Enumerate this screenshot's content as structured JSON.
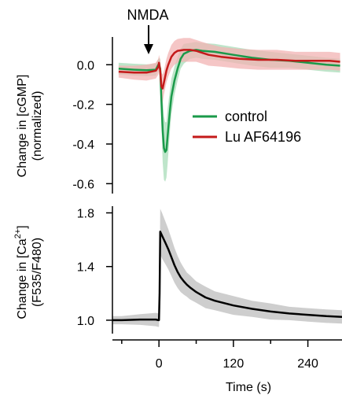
{
  "chart_data": [
    {
      "id": "top",
      "type": "line",
      "ylabel_lines": [
        "Change in [cGMP]",
        "(normalized)"
      ],
      "ylim": [
        -0.65,
        0.14
      ],
      "yticks": [
        0.0,
        -0.2,
        -0.4,
        -0.6
      ],
      "ytick_labels": [
        "0.0",
        "-0.2",
        "-0.4",
        "-0.6"
      ],
      "annotation": "NMDA",
      "annotation_x": 0,
      "legend": [
        "control",
        "Lu AF64196"
      ],
      "legend_position": "center-right",
      "series": [
        {
          "name": "control",
          "color": "#1a9a4a",
          "band_color": "#a8dcb8",
          "points": [
            [
              -65,
              -0.02
            ],
            [
              -40,
              -0.025
            ],
            [
              -20,
              -0.028
            ],
            [
              -5,
              -0.025
            ],
            [
              -1,
              0.0
            ],
            [
              0,
              0.0
            ],
            [
              2,
              -0.02
            ],
            [
              4,
              -0.18
            ],
            [
              6,
              -0.33
            ],
            [
              8,
              -0.42
            ],
            [
              10,
              -0.44
            ],
            [
              12,
              -0.43
            ],
            [
              14,
              -0.36
            ],
            [
              16,
              -0.29
            ],
            [
              18,
              -0.22
            ],
            [
              20,
              -0.16
            ],
            [
              25,
              -0.08
            ],
            [
              30,
              -0.02
            ],
            [
              35,
              0.03
            ],
            [
              40,
              0.055
            ],
            [
              50,
              0.07
            ],
            [
              60,
              0.075
            ],
            [
              70,
              0.07
            ],
            [
              90,
              0.065
            ],
            [
              120,
              0.05
            ],
            [
              150,
              0.035
            ],
            [
              180,
              0.025
            ],
            [
              210,
              0.02
            ],
            [
              240,
              0.01
            ],
            [
              270,
              0.0
            ],
            [
              292,
              -0.005
            ]
          ],
          "band": [
            0.03,
            0.03,
            0.03,
            0.03,
            0.03,
            0.035,
            0.05,
            0.12,
            0.16,
            0.16,
            0.15,
            0.14,
            0.14,
            0.12,
            0.1,
            0.09,
            0.07,
            0.06,
            0.05,
            0.05,
            0.04,
            0.04,
            0.04,
            0.04,
            0.04,
            0.04,
            0.04,
            0.035,
            0.035,
            0.035,
            0.035
          ]
        },
        {
          "name": "Lu AF64196",
          "color": "#c41a1a",
          "band_color": "#f2b3b3",
          "points": [
            [
              -65,
              -0.035
            ],
            [
              -40,
              -0.04
            ],
            [
              -20,
              -0.04
            ],
            [
              -5,
              -0.03
            ],
            [
              -1,
              -0.01
            ],
            [
              0,
              0.01
            ],
            [
              2,
              -0.03
            ],
            [
              4,
              -0.11
            ],
            [
              6,
              -0.12
            ],
            [
              8,
              -0.09
            ],
            [
              10,
              -0.06
            ],
            [
              12,
              -0.03
            ],
            [
              15,
              0.0
            ],
            [
              20,
              0.04
            ],
            [
              25,
              0.06
            ],
            [
              30,
              0.07
            ],
            [
              40,
              0.075
            ],
            [
              50,
              0.075
            ],
            [
              60,
              0.07
            ],
            [
              80,
              0.05
            ],
            [
              100,
              0.04
            ],
            [
              130,
              0.03
            ],
            [
              160,
              0.025
            ],
            [
              190,
              0.025
            ],
            [
              220,
              0.02
            ],
            [
              250,
              0.02
            ],
            [
              275,
              0.02
            ],
            [
              292,
              0.015
            ]
          ],
          "band": [
            0.03,
            0.035,
            0.04,
            0.04,
            0.04,
            0.04,
            0.05,
            0.07,
            0.07,
            0.06,
            0.06,
            0.06,
            0.06,
            0.06,
            0.06,
            0.06,
            0.06,
            0.06,
            0.055,
            0.055,
            0.05,
            0.05,
            0.05,
            0.05,
            0.045,
            0.045,
            0.045,
            0.045
          ]
        }
      ]
    },
    {
      "id": "bottom",
      "type": "line",
      "ylabel_lines": [
        "Change in [Ca",
        "2+",
        "]",
        "(F535/F480)"
      ],
      "ylim": [
        0.9,
        1.85
      ],
      "yticks": [
        1.0,
        1.4,
        1.8
      ],
      "ytick_labels": [
        "1.0",
        "1.4",
        "1.8"
      ],
      "xlim": [
        -75,
        295
      ],
      "xticks": [
        0,
        120,
        240
      ],
      "xtick_labels": [
        "0",
        "120",
        "240"
      ],
      "xminor": [
        -60,
        60,
        180
      ],
      "xlabel": "Time (s)",
      "series": [
        {
          "color": "#000000",
          "band_color": "#bdbdbd",
          "points": [
            [
              -75,
              1.0
            ],
            [
              -60,
              1.0
            ],
            [
              -30,
              1.005
            ],
            [
              -5,
              1.005
            ],
            [
              -1,
              1.0
            ],
            [
              0,
              1.0
            ],
            [
              1,
              1.2
            ],
            [
              2,
              1.66
            ],
            [
              5,
              1.63
            ],
            [
              10,
              1.58
            ],
            [
              15,
              1.53
            ],
            [
              20,
              1.47
            ],
            [
              25,
              1.41
            ],
            [
              30,
              1.36
            ],
            [
              35,
              1.32
            ],
            [
              40,
              1.29
            ],
            [
              45,
              1.265
            ],
            [
              50,
              1.245
            ],
            [
              60,
              1.21
            ],
            [
              75,
              1.17
            ],
            [
              90,
              1.145
            ],
            [
              120,
              1.11
            ],
            [
              150,
              1.085
            ],
            [
              180,
              1.065
            ],
            [
              210,
              1.05
            ],
            [
              240,
              1.04
            ],
            [
              270,
              1.03
            ],
            [
              295,
              1.025
            ]
          ],
          "band": [
            0.03,
            0.03,
            0.04,
            0.05,
            0.05,
            0.05,
            0.08,
            0.17,
            0.17,
            0.16,
            0.15,
            0.14,
            0.13,
            0.12,
            0.11,
            0.1,
            0.09,
            0.09,
            0.08,
            0.08,
            0.07,
            0.07,
            0.06,
            0.06,
            0.05,
            0.05,
            0.05,
            0.05
          ]
        }
      ]
    }
  ]
}
